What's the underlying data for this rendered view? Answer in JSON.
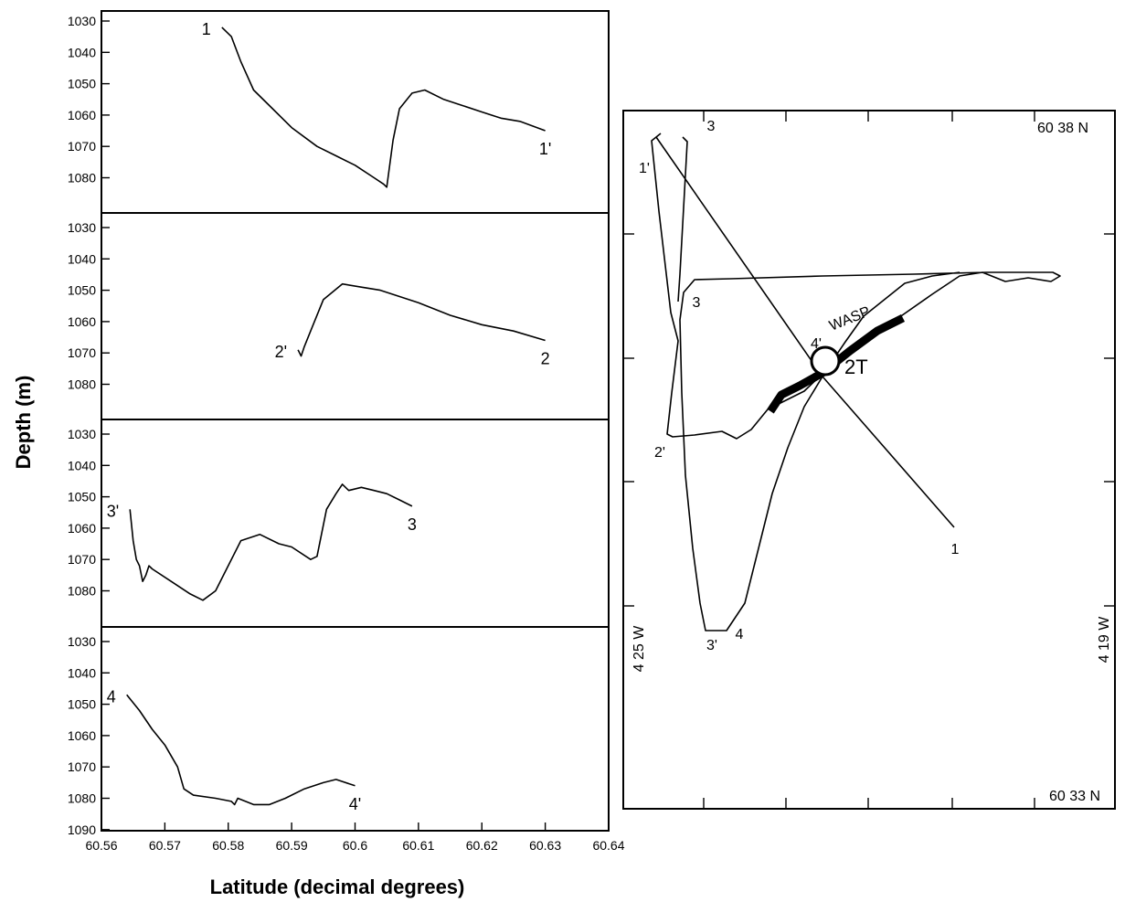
{
  "chart_data": [
    {
      "type": "line",
      "panels": [
        {
          "name": "profile-1",
          "ylim": [
            1030,
            1090
          ],
          "start_label": "1",
          "end_label": "1'",
          "points": [
            [
              60.579,
              1032
            ],
            [
              60.5805,
              1035
            ],
            [
              60.582,
              1043
            ],
            [
              60.584,
              1052
            ],
            [
              60.587,
              1058
            ],
            [
              60.59,
              1064
            ],
            [
              60.594,
              1070
            ],
            [
              60.597,
              1073
            ],
            [
              60.6,
              1076
            ],
            [
              60.603,
              1080
            ],
            [
              60.6045,
              1082
            ],
            [
              60.605,
              1083
            ],
            [
              60.606,
              1068
            ],
            [
              60.607,
              1058
            ],
            [
              60.609,
              1053
            ],
            [
              60.611,
              1052
            ],
            [
              60.614,
              1055
            ],
            [
              60.617,
              1057
            ],
            [
              60.62,
              1059
            ],
            [
              60.623,
              1061
            ],
            [
              60.626,
              1062
            ],
            [
              60.63,
              1065
            ]
          ]
        },
        {
          "name": "profile-2",
          "ylim": [
            1030,
            1090
          ],
          "start_label": "2'",
          "end_label": "2",
          "points": [
            [
              60.591,
              1069
            ],
            [
              60.5915,
              1071
            ],
            [
              60.592,
              1068
            ],
            [
              60.593,
              1063
            ],
            [
              60.595,
              1053
            ],
            [
              60.598,
              1048
            ],
            [
              60.601,
              1049
            ],
            [
              60.604,
              1050
            ],
            [
              60.61,
              1054
            ],
            [
              60.615,
              1058
            ],
            [
              60.62,
              1061
            ],
            [
              60.625,
              1063
            ],
            [
              60.63,
              1066
            ]
          ]
        },
        {
          "name": "profile-3",
          "ylim": [
            1030,
            1090
          ],
          "start_label": "3'",
          "end_label": "3",
          "points": [
            [
              60.5645,
              1054
            ],
            [
              60.565,
              1064
            ],
            [
              60.5655,
              1070
            ],
            [
              60.566,
              1072
            ],
            [
              60.5665,
              1077
            ],
            [
              60.567,
              1075
            ],
            [
              60.5675,
              1072
            ],
            [
              60.568,
              1073
            ],
            [
              60.571,
              1077
            ],
            [
              60.574,
              1081
            ],
            [
              60.576,
              1083
            ],
            [
              60.578,
              1080
            ],
            [
              60.58,
              1072
            ],
            [
              60.582,
              1064
            ],
            [
              60.585,
              1062
            ],
            [
              60.588,
              1065
            ],
            [
              60.59,
              1066
            ],
            [
              60.593,
              1070
            ],
            [
              60.594,
              1069
            ],
            [
              60.5955,
              1054
            ],
            [
              60.597,
              1049
            ],
            [
              60.598,
              1046
            ],
            [
              60.599,
              1048
            ],
            [
              60.601,
              1047
            ],
            [
              60.603,
              1048
            ],
            [
              60.605,
              1049
            ],
            [
              60.607,
              1051
            ],
            [
              60.609,
              1053
            ]
          ]
        },
        {
          "name": "profile-4",
          "ylim": [
            1030,
            1090
          ],
          "start_label": "4",
          "end_label": "4'",
          "points": [
            [
              60.564,
              1047
            ],
            [
              60.566,
              1052
            ],
            [
              60.568,
              1058
            ],
            [
              60.57,
              1063
            ],
            [
              60.572,
              1070
            ],
            [
              60.573,
              1077
            ],
            [
              60.5745,
              1079
            ],
            [
              60.578,
              1080
            ],
            [
              60.5805,
              1081
            ],
            [
              60.581,
              1082
            ],
            [
              60.5815,
              1080
            ],
            [
              60.584,
              1082
            ],
            [
              60.5865,
              1082
            ],
            [
              60.589,
              1080
            ],
            [
              60.592,
              1077
            ],
            [
              60.595,
              1075
            ],
            [
              60.597,
              1074
            ],
            [
              60.6,
              1076
            ]
          ]
        }
      ],
      "xlim": [
        60.56,
        60.64
      ],
      "x_ticks": [
        "60.56",
        "60.57",
        "60.58",
        "60.59",
        "60.6",
        "60.61",
        "60.62",
        "60.63",
        "60.64"
      ],
      "y_ticks_top": [
        "1030",
        "1040",
        "1050",
        "1060",
        "1070",
        "1080"
      ],
      "y_ticks_bottom": [
        "1030",
        "1040",
        "1050",
        "1060",
        "1070",
        "1080",
        "1090"
      ],
      "xlabel": "Latitude (decimal degrees)",
      "ylabel": "Depth (m)"
    },
    {
      "type": "map",
      "corner_labels": {
        "top_right": "60 38 N",
        "bottom_right": "60 33 N",
        "left": "4 25 W",
        "right": "4 19 W"
      },
      "track_labels": [
        "1",
        "1'",
        "2",
        "2'",
        "3",
        "3'",
        "4",
        "4'"
      ],
      "feature_labels": {
        "segment": "WASP",
        "site": "2T"
      }
    }
  ]
}
